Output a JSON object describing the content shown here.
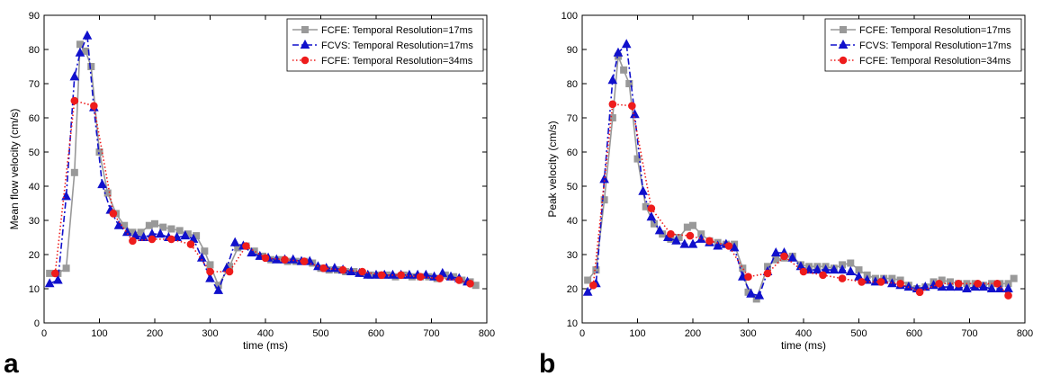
{
  "chart_data": [
    {
      "type": "line",
      "panel_label": "a",
      "xlabel": "time (ms)",
      "ylabel": "Mean flow velocity (cm/s)",
      "xlim": [
        0,
        800
      ],
      "ylim": [
        0,
        90
      ],
      "xticks": [
        0,
        100,
        200,
        300,
        400,
        500,
        600,
        700,
        800
      ],
      "yticks": [
        0,
        10,
        20,
        30,
        40,
        50,
        60,
        70,
        80,
        90
      ],
      "grid": false,
      "legend_position": "top-right",
      "series": [
        {
          "name": "FCFE: Temporal Resolution=17ms",
          "color": "#999999",
          "marker": "square",
          "line_style": "solid",
          "x": [
            10,
            25,
            40,
            55,
            65,
            75,
            85,
            100,
            115,
            130,
            145,
            160,
            175,
            190,
            200,
            215,
            230,
            245,
            260,
            275,
            290,
            300,
            315,
            335,
            350,
            365,
            380,
            395,
            410,
            425,
            440,
            455,
            470,
            485,
            500,
            515,
            530,
            545,
            560,
            575,
            590,
            605,
            620,
            635,
            650,
            665,
            680,
            695,
            710,
            725,
            740,
            755,
            770,
            780
          ],
          "y": [
            14.5,
            14.5,
            16,
            44,
            81.5,
            79.5,
            75,
            50,
            38,
            32,
            28.5,
            26.5,
            26.5,
            28.5,
            29,
            28,
            27.5,
            27,
            26,
            25.5,
            21,
            17,
            11,
            16.5,
            22,
            22.5,
            21,
            19.5,
            18.5,
            18.5,
            18,
            18,
            18,
            17.5,
            16,
            15.5,
            15.5,
            15,
            15,
            14.5,
            14,
            14,
            14,
            13.5,
            14,
            13.5,
            13.5,
            13.5,
            13,
            14,
            13.5,
            12.5,
            12,
            11
          ]
        },
        {
          "name": "FCVS: Temporal Resolution=17ms",
          "color": "#1010cc",
          "marker": "triangle",
          "line_style": "dashdot",
          "x": [
            10,
            25,
            40,
            55,
            65,
            78,
            90,
            105,
            120,
            135,
            150,
            165,
            180,
            195,
            210,
            225,
            240,
            255,
            270,
            285,
            300,
            315,
            330,
            345,
            360,
            375,
            390,
            405,
            420,
            435,
            450,
            465,
            480,
            495,
            510,
            525,
            540,
            555,
            570,
            585,
            600,
            615,
            630,
            645,
            660,
            675,
            690,
            705,
            720,
            735,
            750,
            765
          ],
          "y": [
            11.5,
            12.5,
            37,
            72,
            79,
            84,
            63,
            40.5,
            33,
            28.5,
            26.5,
            25.5,
            25,
            26,
            26,
            25,
            25,
            25.5,
            24.5,
            19,
            13,
            9.5,
            16,
            23.5,
            22.5,
            20.5,
            19.5,
            19,
            18.5,
            18.5,
            18.5,
            18,
            18,
            16.5,
            16,
            16,
            15.5,
            15,
            14.5,
            14,
            14,
            14,
            14,
            14,
            14,
            14,
            14,
            13.5,
            14.5,
            13.5,
            13,
            12
          ]
        },
        {
          "name": "FCFE: Temporal Resolution=34ms",
          "color": "#ee1c1c",
          "marker": "circle",
          "line_style": "dotted",
          "x": [
            20,
            55,
            90,
            125,
            160,
            195,
            230,
            265,
            300,
            335,
            365,
            400,
            435,
            470,
            505,
            540,
            575,
            610,
            645,
            680,
            715,
            750,
            770
          ],
          "y": [
            14.5,
            65,
            63.5,
            32,
            24,
            24.5,
            24.5,
            23,
            15,
            15,
            22.5,
            19,
            18.5,
            18,
            16,
            15.5,
            15,
            14,
            14,
            13.5,
            13,
            12.5,
            11.5
          ]
        }
      ]
    },
    {
      "type": "line",
      "panel_label": "b",
      "xlabel": "time (ms)",
      "ylabel": "Peak velocity (cm/s)",
      "xlim": [
        0,
        800
      ],
      "ylim": [
        10,
        100
      ],
      "xticks": [
        0,
        100,
        200,
        300,
        400,
        500,
        600,
        700,
        800
      ],
      "yticks": [
        10,
        20,
        30,
        40,
        50,
        60,
        70,
        80,
        90,
        100
      ],
      "grid": false,
      "legend_position": "top-right",
      "series": [
        {
          "name": "FCFE: Temporal Resolution=17ms",
          "color": "#999999",
          "marker": "square",
          "line_style": "solid",
          "x": [
            10,
            25,
            40,
            55,
            65,
            75,
            85,
            100,
            115,
            130,
            145,
            160,
            175,
            190,
            200,
            215,
            230,
            245,
            260,
            275,
            290,
            300,
            315,
            335,
            350,
            365,
            380,
            395,
            410,
            425,
            440,
            455,
            470,
            485,
            500,
            515,
            530,
            545,
            560,
            575,
            590,
            605,
            620,
            635,
            650,
            665,
            680,
            695,
            710,
            725,
            740,
            755,
            770,
            780
          ],
          "y": [
            22.5,
            25.5,
            46,
            70,
            88,
            84,
            80,
            58,
            44,
            39,
            36,
            34.5,
            35,
            38,
            38.5,
            36,
            34,
            33.5,
            33,
            33,
            26,
            19,
            17,
            26.5,
            28.5,
            29,
            29.5,
            27,
            26.5,
            26.5,
            26.5,
            26,
            27,
            27.5,
            25.5,
            24,
            23,
            23,
            23,
            22.5,
            21,
            20,
            20.5,
            22,
            22.5,
            22,
            21.5,
            21.5,
            21.5,
            21,
            21.5,
            21.5,
            21.5,
            23
          ]
        },
        {
          "name": "FCVS: Temporal Resolution=17ms",
          "color": "#1010cc",
          "marker": "triangle",
          "line_style": "dashdot",
          "x": [
            10,
            25,
            40,
            55,
            65,
            80,
            95,
            110,
            125,
            140,
            155,
            170,
            185,
            200,
            215,
            230,
            245,
            260,
            275,
            290,
            305,
            320,
            335,
            350,
            365,
            380,
            395,
            410,
            425,
            440,
            455,
            470,
            485,
            500,
            515,
            530,
            545,
            560,
            575,
            590,
            605,
            620,
            635,
            650,
            665,
            680,
            695,
            710,
            725,
            740,
            755,
            770
          ],
          "y": [
            19,
            21.5,
            52,
            81,
            89,
            91.5,
            71,
            48.5,
            41,
            37,
            35,
            34,
            33,
            33,
            34.5,
            33.5,
            32.5,
            33,
            32,
            23.5,
            18.5,
            18,
            25,
            30.5,
            30.5,
            29,
            26.5,
            25.5,
            25.5,
            25.5,
            25.5,
            25.5,
            25,
            23.5,
            22.5,
            22,
            22.5,
            21.5,
            21,
            20.5,
            20,
            20.5,
            21,
            20.5,
            20.5,
            20.5,
            20,
            20.5,
            20.5,
            20,
            20,
            20
          ]
        },
        {
          "name": "FCFE: Temporal Resolution=34ms",
          "color": "#ee1c1c",
          "marker": "circle",
          "line_style": "dotted",
          "x": [
            20,
            55,
            90,
            125,
            160,
            195,
            230,
            265,
            300,
            335,
            365,
            400,
            435,
            470,
            505,
            540,
            575,
            610,
            645,
            680,
            715,
            750,
            770
          ],
          "y": [
            21,
            74,
            73.5,
            43.5,
            36,
            35.5,
            34,
            32.5,
            23.5,
            24.5,
            29.5,
            25,
            24,
            23,
            22,
            22,
            21.5,
            19,
            21.5,
            21.5,
            21.5,
            21.5,
            18
          ]
        }
      ]
    }
  ]
}
